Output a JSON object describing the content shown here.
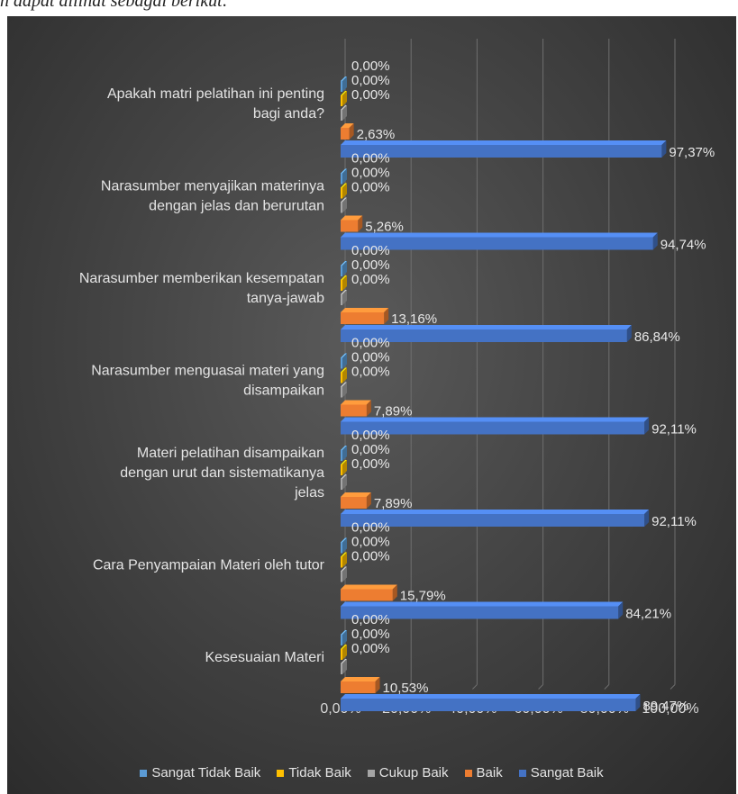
{
  "caption": "n dapat dilihat sebagai berikut:",
  "colors": {
    "Sangat Tidak Baik": "#5b9bd5",
    "Tidak Baik": "#ffc000",
    "Cukup Baik": "#a5a5a5",
    "Baik": "#ed7d31",
    "Sangat Baik": "#4472c4"
  },
  "chart_data": {
    "type": "bar",
    "orientation": "horizontal",
    "categories": [
      "Apakah matri pelatihan ini penting bagi anda?",
      "Narasumber menyajikan materinya dengan jelas dan berurutan",
      "Narasumber memberikan kesempatan tanya-jawab",
      "Narasumber menguasai materi yang disampaikan",
      "Materi pelatihan disampaikan dengan urut dan sistematikanya jelas",
      "Cara Penyampaian Materi oleh tutor",
      "Kesesuaian Materi"
    ],
    "series": [
      {
        "name": "Sangat Tidak Baik",
        "values": [
          0,
          0,
          0,
          0,
          0,
          0,
          0
        ],
        "labels": [
          "0,00%",
          "0,00%",
          "0,00%",
          "0,00%",
          "0,00%",
          "0,00%",
          "0,00%"
        ]
      },
      {
        "name": "Tidak Baik",
        "values": [
          0,
          0,
          0,
          0,
          0,
          0,
          0
        ],
        "labels": [
          "0,00%",
          "0,00%",
          "0,00%",
          "0,00%",
          "0,00%",
          "0,00%",
          "0,00%"
        ]
      },
      {
        "name": "Cukup Baik",
        "values": [
          0,
          0,
          0,
          0,
          0,
          0,
          0
        ],
        "labels": [
          "0,00%",
          "0,00%",
          "0,00%",
          "0,00%",
          "0,00%",
          "0,00%",
          "0,00%"
        ]
      },
      {
        "name": "Baik",
        "values": [
          2.63,
          5.26,
          13.16,
          7.89,
          7.89,
          15.79,
          10.53
        ],
        "labels": [
          "2,63%",
          "5,26%",
          "13,16%",
          "7,89%",
          "7,89%",
          "15,79%",
          "10,53%"
        ]
      },
      {
        "name": "Sangat Baik",
        "values": [
          97.37,
          94.74,
          86.84,
          92.11,
          92.11,
          84.21,
          89.47
        ],
        "labels": [
          "97,37%",
          "94,74%",
          "86,84%",
          "92,11%",
          "92,11%",
          "84,21%",
          "89,47%"
        ]
      }
    ],
    "xticks": [
      "0,00%",
      "20,00%",
      "40,00%",
      "60,00%",
      "80,00%",
      "100,00%"
    ],
    "xlim": [
      0,
      100
    ],
    "grid": true,
    "legend": "bottom",
    "style": "3d-bar",
    "title": "",
    "xlabel": "",
    "ylabel": ""
  }
}
